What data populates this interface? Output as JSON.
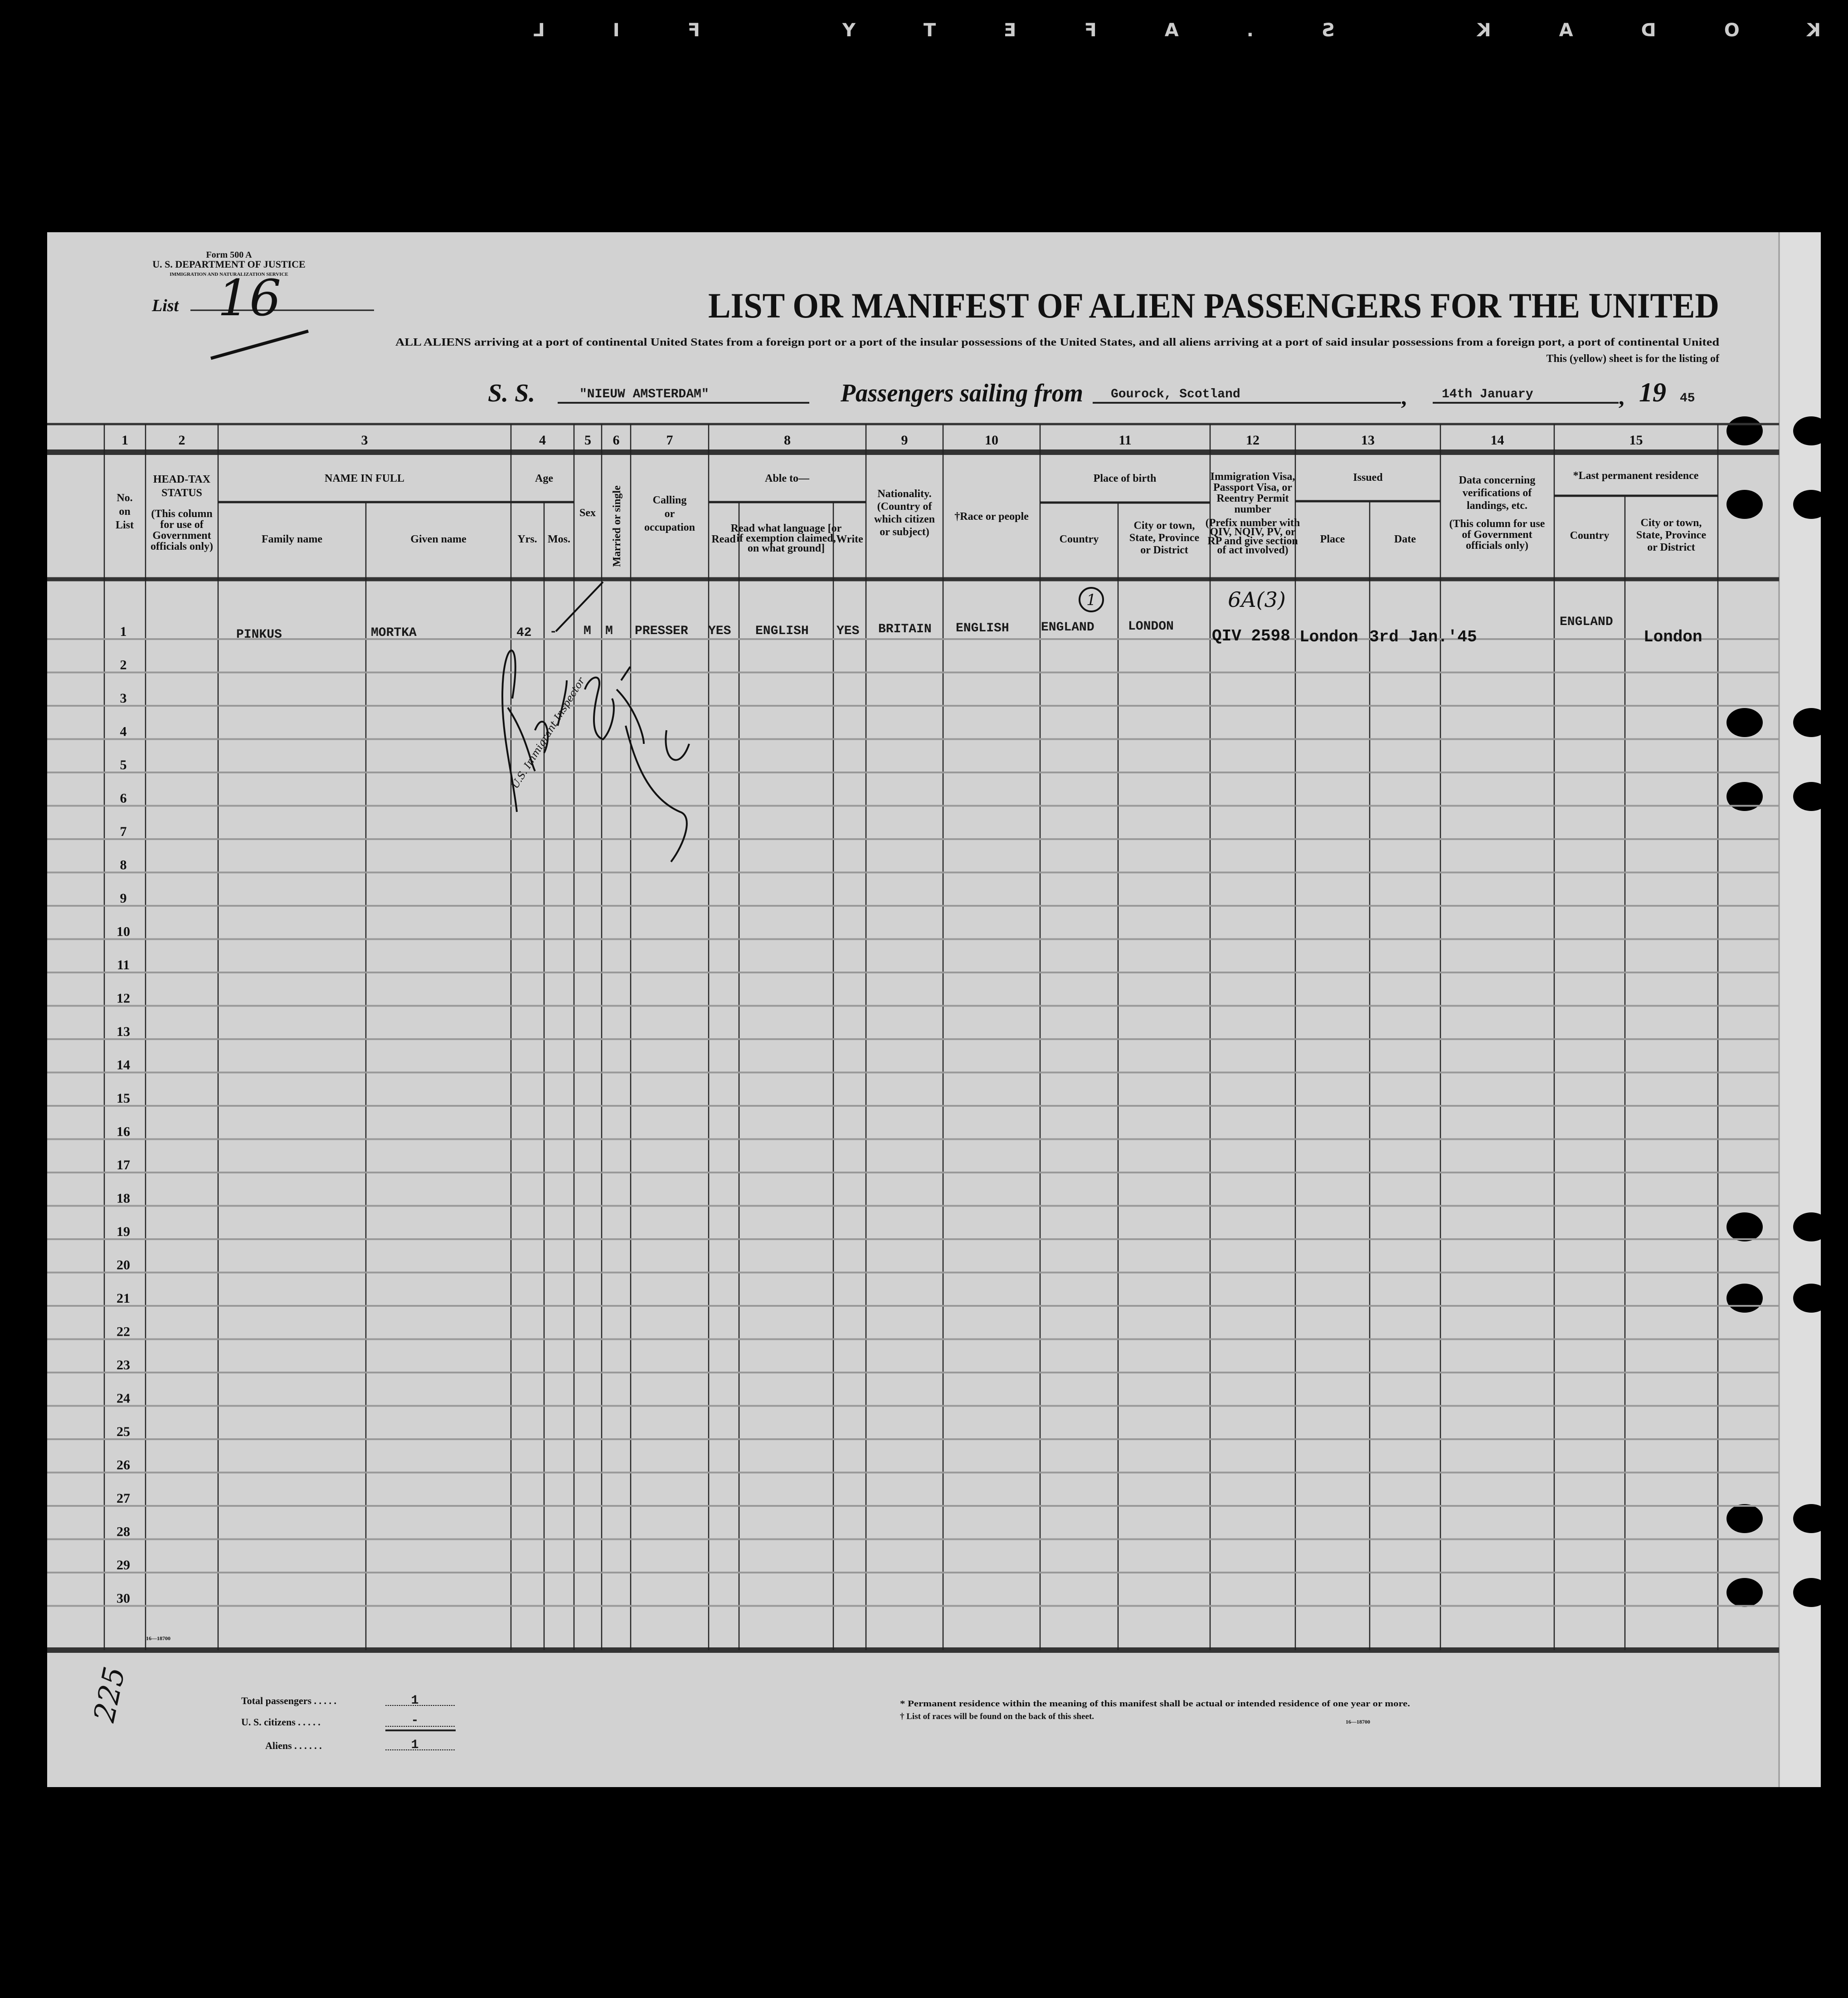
{
  "film_edge": "KODAK S.AFETY FIL",
  "form": {
    "form_number": "Form 500 A",
    "department": "U. S. DEPARTMENT OF JUSTICE",
    "service": "IMMIGRATION AND NATURALIZATION SERVICE",
    "list_label": "List",
    "list_number": "16"
  },
  "title": "LIST OR MANIFEST OF ALIEN PASSENGERS FOR THE UNITED",
  "subtitle_1": "ALL ALIENS arriving at a port of continental United States from a foreign port or a port of the insular possessions of the United States, and all aliens arriving at a port of said insular possessions from a foreign port, a port of continental United",
  "subtitle_2": "This (yellow) sheet is for the listing of",
  "voyage": {
    "ss_label": "S. S.",
    "ship": "\"NIEUW AMSTERDAM\"",
    "sailing_label": "Passengers sailing from",
    "port": "Gourock, Scotland",
    "date": "14th January",
    "year_prefix": "19",
    "year": "45"
  },
  "column_numbers": [
    "1",
    "2",
    "3",
    "4",
    "5",
    "6",
    "7",
    "8",
    "9",
    "10",
    "11",
    "12",
    "13",
    "14",
    "15"
  ],
  "headers": {
    "no_on_list": [
      "No.",
      "on",
      "List"
    ],
    "head_tax": [
      "HEAD-TAX",
      "STATUS"
    ],
    "head_tax_note": [
      "(This column",
      "for use of",
      "Government",
      "officials only)"
    ],
    "name_in_full": "NAME IN FULL",
    "family_name": "Family name",
    "given_name": "Given name",
    "age": "Age",
    "yrs": "Yrs.",
    "mos": "Mos.",
    "sex": "Sex",
    "married": "Married or single",
    "occupation": [
      "Calling",
      "or",
      "occupation"
    ],
    "able_to": "Able to—",
    "read": "Read",
    "read_language": [
      "Read what language [or",
      "if exemption claimed,",
      "on what ground]"
    ],
    "write": "Write",
    "nationality": [
      "Nationality.",
      "(Country of",
      "which citizen",
      "or subject)"
    ],
    "race": "†Race or people",
    "place_of_birth": "Place of birth",
    "birth_country": "Country",
    "birth_city": [
      "City or town,",
      "State, Province",
      "or District"
    ],
    "visa": [
      "Immigration Visa,",
      "Passport Visa, or",
      "Reentry Permit",
      "number",
      "(Prefix number with",
      "QIV, NQIV, PV, or",
      "RP and give section",
      "of act involved)"
    ],
    "issued": "Issued",
    "issued_place": "Place",
    "issued_date": "Date",
    "verification": [
      "Data concerning",
      "verifications of",
      "landings, etc.",
      "(This column for use",
      "of Government",
      "officials only)"
    ],
    "last_residence": "*Last permanent residence",
    "res_country": "Country",
    "res_city": [
      "City or town,",
      "State, Province",
      "or District"
    ]
  },
  "row_numbers": [
    "1",
    "2",
    "3",
    "4",
    "5",
    "6",
    "7",
    "8",
    "9",
    "10",
    "11",
    "12",
    "13",
    "14",
    "15",
    "16",
    "17",
    "18",
    "19",
    "20",
    "21",
    "22",
    "23",
    "24",
    "25",
    "26",
    "27",
    "28",
    "29",
    "30"
  ],
  "passengers": [
    {
      "family_name": "PINKUS",
      "given_name": "MORTKA",
      "age_years": "42",
      "age_months": "-",
      "sex": "M",
      "marital": "M",
      "occupation": "PRESSER",
      "read": "YES",
      "language": "ENGLISH",
      "write": "YES",
      "nationality": "BRITAIN",
      "race": "ENGLISH",
      "birth_country": "ENGLAND",
      "birth_city": "LONDON",
      "visa": "QIV 2598",
      "issued_place": "London",
      "issued_date": "3rd Jan.'45",
      "verification": "",
      "res_country": "ENGLAND",
      "res_city": "London",
      "annotation_birth": "1",
      "annotation_visa": "6A(3)"
    }
  ],
  "stamp": "U.S. Immigrant Inspector",
  "print_code": "16—18700",
  "totals": {
    "total_label": "Total passengers . . . . .",
    "total_value": "1",
    "citizens_label": "U. S. citizens . . . . .",
    "citizens_value": "-",
    "aliens_label": "Aliens . . . . . .",
    "aliens_value": "1"
  },
  "footnotes": {
    "residence": "* Permanent residence within the meaning of this manifest shall be actual or intended residence of one year or more.",
    "races": "† List of races will be found on the back of this sheet.",
    "code": "16—18700"
  },
  "handwritten_page_number": "225",
  "colors": {
    "paper": "#d2d2d2",
    "ink": "#111111",
    "background": "#000000"
  }
}
